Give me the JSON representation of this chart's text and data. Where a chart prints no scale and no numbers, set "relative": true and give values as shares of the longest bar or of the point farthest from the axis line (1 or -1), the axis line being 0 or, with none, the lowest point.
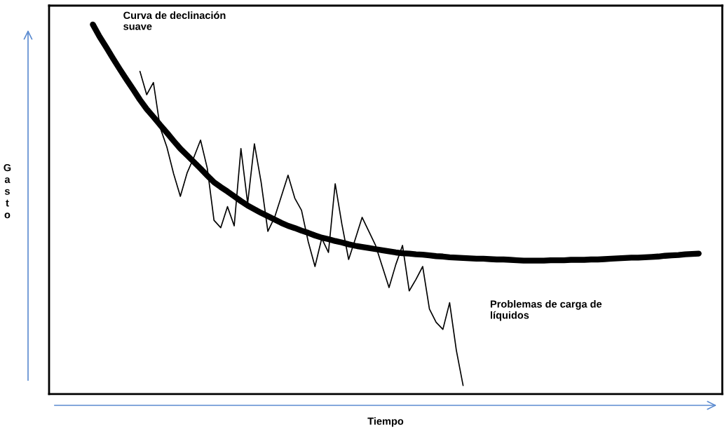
{
  "chart_data": {
    "type": "line",
    "relative": true,
    "xlabel": "Tiempo",
    "marker": "none",
    "line_style": "solid",
    "annotations": [
      "Curva de declinación\nsuave",
      "Problemas de carga de\nlíquidos",
      "Gasto"
    ],
    "categories": [
      null,
      null,
      null,
      null,
      null,
      null,
      null,
      null,
      null,
      null,
      null,
      null,
      null,
      null,
      null,
      null,
      null,
      null,
      null,
      null,
      null,
      null,
      null,
      null,
      null,
      null,
      null,
      null,
      null,
      null,
      null,
      null,
      null,
      null,
      null,
      null,
      null,
      null,
      null,
      null,
      null,
      null,
      null,
      null,
      null,
      null,
      null,
      null,
      null,
      null,
      null,
      null,
      null,
      null,
      null,
      null,
      null,
      null,
      null,
      null,
      null,
      null,
      null,
      null,
      null,
      null,
      null,
      null,
      null,
      null,
      null,
      null,
      null,
      null,
      null,
      null,
      null,
      null,
      null,
      null,
      null,
      null,
      null,
      null,
      null,
      null,
      null,
      null,
      null,
      null,
      null,
      null,
      null,
      null,
      null,
      null,
      null,
      null,
      null,
      null
    ],
    "series": [
      {
        "color": "#000000",
        "values": [
          null,
          null,
          null,
          null,
          null,
          null,
          1.0,
          0.967,
          0.938,
          0.908,
          0.879,
          0.851,
          0.824,
          0.796,
          0.771,
          0.75,
          0.728,
          0.707,
          0.685,
          0.664,
          0.646,
          0.628,
          0.61,
          0.591,
          0.573,
          0.56,
          0.548,
          0.535,
          0.522,
          0.51,
          0.5,
          0.49,
          0.481,
          0.472,
          0.463,
          0.455,
          0.449,
          0.442,
          0.436,
          0.429,
          0.423,
          0.419,
          0.414,
          0.41,
          0.405,
          0.401,
          0.398,
          0.395,
          0.392,
          0.389,
          0.386,
          0.383,
          0.381,
          0.38,
          0.378,
          0.377,
          0.375,
          0.373,
          0.372,
          0.37,
          0.369,
          0.368,
          0.367,
          0.366,
          0.366,
          0.365,
          0.364,
          0.364,
          0.363,
          0.362,
          0.361,
          0.361,
          0.361,
          0.361,
          0.362,
          0.362,
          0.362,
          0.363,
          0.363,
          0.363,
          0.364,
          0.364,
          0.365,
          0.366,
          0.367,
          0.368,
          0.369,
          0.369,
          0.37,
          0.371,
          0.372,
          0.374,
          0.375,
          0.376,
          0.378,
          0.379,
          0.38,
          null,
          null,
          null
        ]
      },
      {
        "color": "#000000",
        "values": [
          null,
          null,
          null,
          null,
          null,
          null,
          null,
          null,
          null,
          null,
          null,
          null,
          null,
          0.873,
          0.81,
          0.843,
          0.721,
          0.668,
          0.596,
          0.535,
          0.598,
          0.64,
          0.687,
          0.611,
          0.47,
          0.45,
          0.507,
          0.455,
          0.664,
          0.516,
          0.677,
          0.573,
          0.44,
          0.478,
          0.535,
          0.592,
          0.53,
          0.497,
          0.412,
          0.345,
          0.421,
          0.383,
          0.569,
          0.459,
          0.364,
          0.42,
          0.478,
          0.44,
          0.402,
          0.345,
          0.288,
          0.35,
          0.402,
          0.279,
          0.31,
          0.345,
          0.23,
          0.194,
          0.175,
          0.247,
          0.118,
          0.023,
          null,
          null,
          null,
          null,
          null,
          null,
          null,
          null,
          null,
          null,
          null,
          null,
          null,
          null,
          null,
          null,
          null,
          null,
          null,
          null,
          null,
          null,
          null,
          null,
          null,
          null,
          null,
          null,
          null,
          null,
          null,
          null,
          null,
          null,
          null,
          null,
          null,
          null
        ]
      }
    ]
  }
}
